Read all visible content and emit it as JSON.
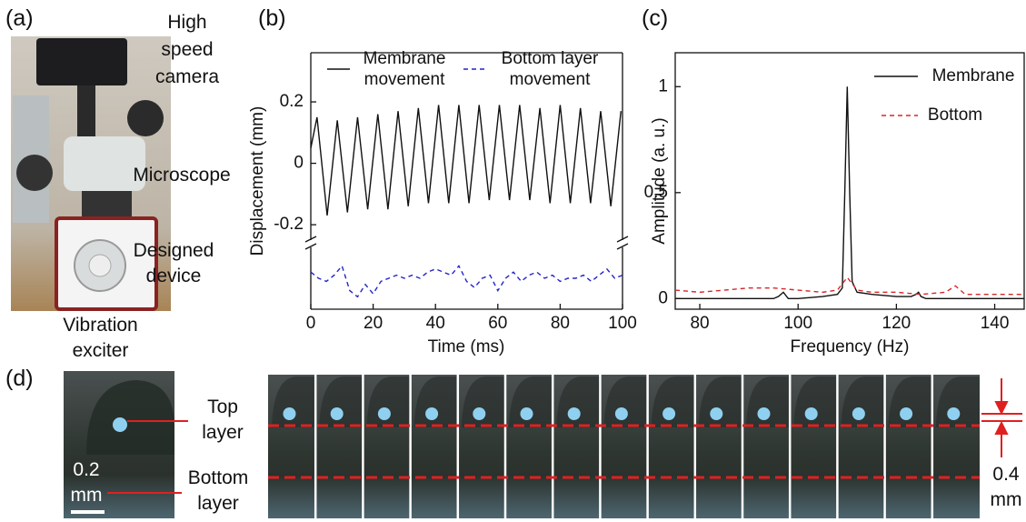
{
  "panel_labels": [
    "(a)",
    "(b)",
    "(c)",
    "(d)"
  ],
  "photo_a": {
    "camera": "High speed camera",
    "microscope": "Microscope",
    "device": "Designed device",
    "exciter": "Vibration exciter"
  },
  "photo_d": {
    "top_layer": "Top layer",
    "bottom_layer": "Bottom layer",
    "scale_bar": "0.2 mm",
    "spacing": "0.4 mm"
  },
  "chart_data": [
    {
      "type": "line",
      "xlabel": "Time (ms)",
      "ylabel": "Displacement (mm)",
      "xlim": [
        0,
        100
      ],
      "xticks": [
        0,
        20,
        40,
        60,
        80,
        100
      ],
      "ylim": [
        -0.25,
        0.36
      ],
      "yticks": [
        -0.2,
        0,
        0.2
      ],
      "y2lim": [
        -0.62,
        -0.42
      ],
      "axis_break": true,
      "series": [
        {
          "name": "Membrane movement",
          "color": "#111111",
          "linestyle": "solid",
          "x": [
            0,
            2,
            5.25,
            8.5,
            11.75,
            15,
            18.25,
            21.5,
            24.75,
            28,
            31.25,
            34.5,
            37.75,
            41,
            44.25,
            47.5,
            50.75,
            54,
            57.25,
            60.5,
            63.75,
            67,
            70.25,
            73.5,
            76.75,
            80,
            83.25,
            86.5,
            89.75,
            93,
            96.25,
            99.5
          ],
          "values": [
            0.05,
            0.15,
            -0.17,
            0.14,
            -0.16,
            0.15,
            -0.15,
            0.16,
            -0.15,
            0.17,
            -0.14,
            0.18,
            -0.13,
            0.19,
            -0.13,
            0.19,
            -0.13,
            0.19,
            -0.12,
            0.19,
            -0.12,
            0.19,
            -0.12,
            0.18,
            -0.13,
            0.19,
            -0.13,
            0.18,
            -0.13,
            0.17,
            -0.14,
            0.17
          ]
        },
        {
          "name": "Bottom layer movement",
          "color": "#2424c8",
          "linestyle": "dashed",
          "axis": "y2",
          "x": [
            0,
            2.5,
            5,
            7.5,
            10,
            12.5,
            15,
            17.5,
            20,
            22.5,
            25,
            27.5,
            30,
            32.5,
            35,
            37.5,
            40,
            42.5,
            45,
            47.5,
            50,
            52.5,
            55,
            57.5,
            60,
            62.5,
            65,
            67.5,
            70,
            72.5,
            75,
            77.5,
            80,
            82.5,
            85,
            87.5,
            90,
            92.5,
            95,
            97.5,
            100
          ],
          "values": [
            -0.5,
            -0.52,
            -0.53,
            -0.51,
            -0.48,
            -0.56,
            -0.58,
            -0.54,
            -0.57,
            -0.53,
            -0.52,
            -0.51,
            -0.52,
            -0.51,
            -0.52,
            -0.5,
            -0.49,
            -0.5,
            -0.51,
            -0.48,
            -0.53,
            -0.55,
            -0.52,
            -0.51,
            -0.56,
            -0.52,
            -0.5,
            -0.53,
            -0.51,
            -0.5,
            -0.52,
            -0.51,
            -0.53,
            -0.52,
            -0.52,
            -0.51,
            -0.53,
            -0.51,
            -0.49,
            -0.52,
            -0.51
          ]
        }
      ]
    },
    {
      "type": "line",
      "xlabel": "Frequency (Hz)",
      "ylabel": "Amplitude (a. u.)",
      "xlim": [
        75,
        146
      ],
      "xticks": [
        80,
        100,
        120,
        140
      ],
      "ylim": [
        -0.05,
        1.16
      ],
      "yticks": [
        0,
        0.5,
        1
      ],
      "series": [
        {
          "name": "Membrane",
          "color": "#111111",
          "linestyle": "solid",
          "x": [
            75,
            80,
            85,
            90,
            95,
            96,
            97,
            98,
            100,
            105,
            108,
            109,
            109.5,
            110,
            110.5,
            111,
            112,
            115,
            120,
            123,
            124,
            124.5,
            125,
            126,
            130,
            135,
            140,
            146
          ],
          "values": [
            0,
            0,
            0,
            0,
            0,
            0.01,
            0.03,
            0,
            0,
            0.01,
            0.02,
            0.05,
            0.5,
            1,
            0.5,
            0.08,
            0.03,
            0.02,
            0.01,
            0.01,
            0.02,
            0.03,
            0.01,
            0,
            0,
            0,
            0,
            0
          ]
        },
        {
          "name": "Bottom",
          "color": "#d62728",
          "linestyle": "dashed",
          "x": [
            75,
            80,
            85,
            90,
            95,
            100,
            105,
            108,
            110,
            112,
            115,
            120,
            125,
            130,
            132,
            134,
            138,
            142,
            146
          ],
          "values": [
            0.04,
            0.03,
            0.04,
            0.05,
            0.05,
            0.04,
            0.03,
            0.04,
            0.1,
            0.04,
            0.03,
            0.03,
            0.02,
            0.03,
            0.06,
            0.02,
            0.02,
            0.02,
            0.02
          ]
        }
      ]
    }
  ]
}
